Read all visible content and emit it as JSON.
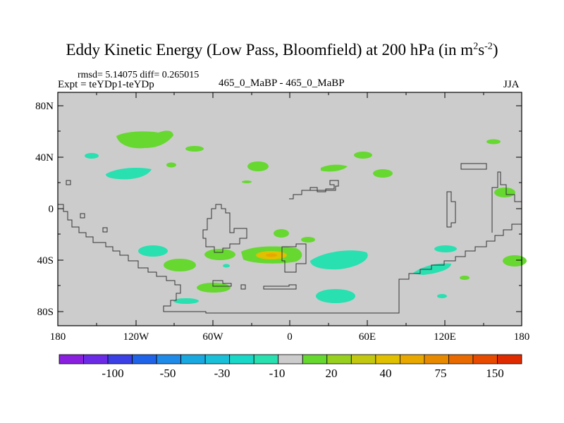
{
  "title": {
    "main": "Eddy Kinetic Energy (Low Pass, Bloomfield) at 200 hPa (in m",
    "sup1": "2",
    "mid": "s",
    "sup2": "-2",
    "end": ")"
  },
  "stats": {
    "rmsd": "rmsd= 5.14075 diff= 0.265015"
  },
  "expt": "Expt = teYDp1-teYDp",
  "center_label": "465_0_MaBP - 465_0_MaBP",
  "season": "JJA",
  "lat_labels": [
    "80N",
    "40N",
    "0",
    "40S",
    "80S"
  ],
  "lon_labels": [
    "180",
    "120W",
    "60W",
    "0",
    "60E",
    "120E",
    "180"
  ],
  "colorbar": {
    "colors": [
      "#8a1fe0",
      "#6b2be6",
      "#3a3fe6",
      "#1f64e8",
      "#1f8ae8",
      "#1aa8e0",
      "#1ac0d8",
      "#1ad8c8",
      "#28e0b0",
      "#cccccc",
      "#66d830",
      "#98d020",
      "#c2c810",
      "#e0c000",
      "#e8a800",
      "#e88a00",
      "#e86a00",
      "#e84a00",
      "#e02a00"
    ],
    "labels": [
      "-100",
      "-50",
      "-30",
      "-10",
      "20",
      "40",
      "75",
      "150"
    ]
  },
  "colors": {
    "land": "#cccccc",
    "cyan": "#28e0b0",
    "green": "#66d830",
    "yellow": "#e0c000",
    "orange": "#e8a800"
  }
}
